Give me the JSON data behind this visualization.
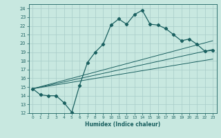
{
  "xlabel": "Humidex (Indice chaleur)",
  "bg_color": "#c8e8e0",
  "line_color": "#1a6060",
  "grid_color": "#a8ccc8",
  "xlim": [
    -0.5,
    23.5
  ],
  "ylim": [
    12,
    24.5
  ],
  "yticks": [
    12,
    13,
    14,
    15,
    16,
    17,
    18,
    19,
    20,
    21,
    22,
    23,
    24
  ],
  "xticks": [
    0,
    1,
    2,
    3,
    4,
    5,
    6,
    7,
    8,
    9,
    10,
    11,
    12,
    13,
    14,
    15,
    16,
    17,
    18,
    19,
    20,
    21,
    22,
    23
  ],
  "main_x": [
    0,
    1,
    2,
    3,
    4,
    5,
    6,
    7,
    8,
    9,
    10,
    11,
    12,
    13,
    14,
    15,
    16,
    17,
    18,
    19,
    20,
    21,
    22,
    23
  ],
  "main_y": [
    14.8,
    14.1,
    14.0,
    14.0,
    13.2,
    12.1,
    15.2,
    17.8,
    19.0,
    19.9,
    22.1,
    22.8,
    22.2,
    23.3,
    23.8,
    22.2,
    22.1,
    21.7,
    21.0,
    20.3,
    20.5,
    19.9,
    19.1,
    19.2
  ],
  "line1_x": [
    0,
    23
  ],
  "line1_y": [
    14.8,
    20.3
  ],
  "line2_x": [
    0,
    23
  ],
  "line2_y": [
    14.8,
    19.3
  ],
  "line3_x": [
    0,
    23
  ],
  "line3_y": [
    14.8,
    18.2
  ]
}
